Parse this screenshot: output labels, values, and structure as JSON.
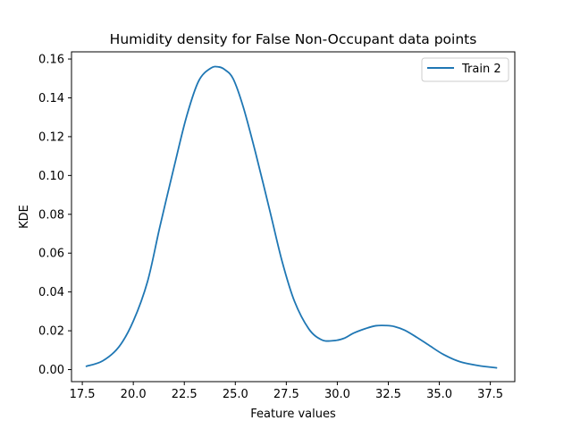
{
  "chart_data": {
    "type": "line",
    "title": "Humidity density for False Non-Occupant data points",
    "xlabel": "Feature values",
    "ylabel": "KDE",
    "xlim": [
      16.97,
      38.7
    ],
    "ylim": [
      -0.0062,
      0.1637
    ],
    "x_ticks": [
      "17.5",
      "20.0",
      "22.5",
      "25.0",
      "27.5",
      "30.0",
      "32.5",
      "35.0",
      "37.5"
    ],
    "y_ticks": [
      "0.00",
      "0.02",
      "0.04",
      "0.06",
      "0.08",
      "0.10",
      "0.12",
      "0.14",
      "0.16"
    ],
    "grid": false,
    "legend_position": "top-right",
    "series": [
      {
        "name": "Train 2",
        "color": "#1f77b4",
        "x": [
          17.7,
          18.5,
          19.3,
          20.0,
          20.7,
          21.3,
          22.0,
          22.6,
          23.2,
          23.8,
          24.2,
          24.5,
          24.9,
          25.4,
          26.0,
          26.7,
          27.3,
          27.9,
          28.6,
          29.2,
          29.7,
          30.3,
          30.8,
          31.4,
          31.9,
          32.4,
          32.8,
          33.3,
          33.9,
          34.5,
          35.2,
          36.0,
          36.9,
          37.8
        ],
        "y": [
          0.0017,
          0.0045,
          0.0118,
          0.025,
          0.0455,
          0.0735,
          0.1045,
          0.13,
          0.1486,
          0.1553,
          0.1559,
          0.1544,
          0.1497,
          0.1349,
          0.1114,
          0.0815,
          0.0555,
          0.0352,
          0.021,
          0.0155,
          0.0148,
          0.016,
          0.0188,
          0.0212,
          0.0226,
          0.0227,
          0.0222,
          0.0203,
          0.0166,
          0.0125,
          0.0078,
          0.0041,
          0.0021,
          0.0009
        ]
      }
    ]
  }
}
